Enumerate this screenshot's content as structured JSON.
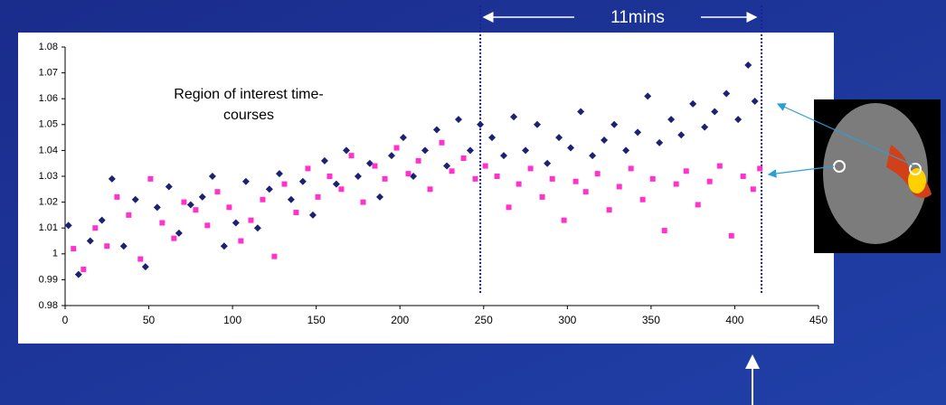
{
  "chart_data": {
    "type": "scatter",
    "title_lines": [
      "Region of interest time-",
      "courses"
    ],
    "annotation": "11mins",
    "xlim": [
      0,
      450
    ],
    "xticks": [
      0,
      50,
      100,
      150,
      200,
      250,
      300,
      350,
      400,
      450
    ],
    "ylim": [
      0.98,
      1.08
    ],
    "yticks": [
      0.98,
      0.99,
      1,
      1.01,
      1.02,
      1.03,
      1.04,
      1.05,
      1.06,
      1.07,
      1.08
    ],
    "vlines": [
      248,
      416
    ],
    "vline_color": "#1a1fa0",
    "series": [
      {
        "color": "#1c2273",
        "marker": "diamond",
        "x": [
          2,
          8,
          15,
          22,
          28,
          35,
          42,
          48,
          55,
          62,
          68,
          75,
          82,
          88,
          95,
          102,
          108,
          115,
          122,
          128,
          135,
          142,
          148,
          155,
          162,
          168,
          175,
          182,
          188,
          195,
          202,
          208,
          215,
          222,
          228,
          235,
          242,
          248,
          255,
          262,
          268,
          275,
          282,
          288,
          295,
          302,
          308,
          315,
          322,
          328,
          335,
          342,
          348,
          355,
          362,
          368,
          375,
          382,
          388,
          395,
          402,
          408,
          412
        ],
        "values": [
          1.011,
          0.992,
          1.005,
          1.013,
          1.029,
          1.003,
          1.021,
          0.995,
          1.018,
          1.026,
          1.008,
          1.019,
          1.022,
          1.03,
          1.003,
          1.012,
          1.028,
          1.01,
          1.025,
          1.031,
          1.021,
          1.028,
          1.015,
          1.036,
          1.027,
          1.04,
          1.03,
          1.035,
          1.022,
          1.038,
          1.045,
          1.03,
          1.04,
          1.048,
          1.034,
          1.052,
          1.04,
          1.05,
          1.045,
          1.038,
          1.053,
          1.04,
          1.05,
          1.035,
          1.045,
          1.041,
          1.055,
          1.038,
          1.044,
          1.05,
          1.04,
          1.047,
          1.061,
          1.043,
          1.052,
          1.046,
          1.058,
          1.049,
          1.055,
          1.062,
          1.052,
          1.073,
          1.059
        ]
      },
      {
        "color": "#ff33cc",
        "marker": "square",
        "x": [
          5,
          11,
          18,
          25,
          31,
          38,
          45,
          51,
          58,
          65,
          71,
          78,
          85,
          91,
          98,
          105,
          111,
          118,
          125,
          131,
          138,
          145,
          151,
          158,
          165,
          171,
          178,
          185,
          191,
          198,
          205,
          211,
          218,
          225,
          231,
          238,
          245,
          251,
          258,
          265,
          271,
          278,
          285,
          291,
          298,
          305,
          311,
          318,
          325,
          331,
          338,
          345,
          351,
          358,
          365,
          371,
          378,
          385,
          391,
          398,
          405,
          411,
          415
        ],
        "values": [
          1.002,
          0.994,
          1.01,
          1.003,
          1.022,
          1.015,
          0.998,
          1.029,
          1.012,
          1.006,
          1.02,
          1.017,
          1.011,
          1.024,
          1.018,
          1.005,
          1.013,
          1.021,
          0.999,
          1.027,
          1.016,
          1.033,
          1.022,
          1.03,
          1.025,
          1.038,
          1.02,
          1.034,
          1.029,
          1.041,
          1.031,
          1.036,
          1.025,
          1.043,
          1.032,
          1.037,
          1.029,
          1.034,
          1.03,
          1.018,
          1.027,
          1.033,
          1.022,
          1.029,
          1.013,
          1.028,
          1.024,
          1.031,
          1.017,
          1.026,
          1.033,
          1.021,
          1.029,
          1.009,
          1.027,
          1.032,
          1.019,
          1.028,
          1.034,
          1.007,
          1.03,
          1.025,
          1.033
        ]
      }
    ]
  }
}
